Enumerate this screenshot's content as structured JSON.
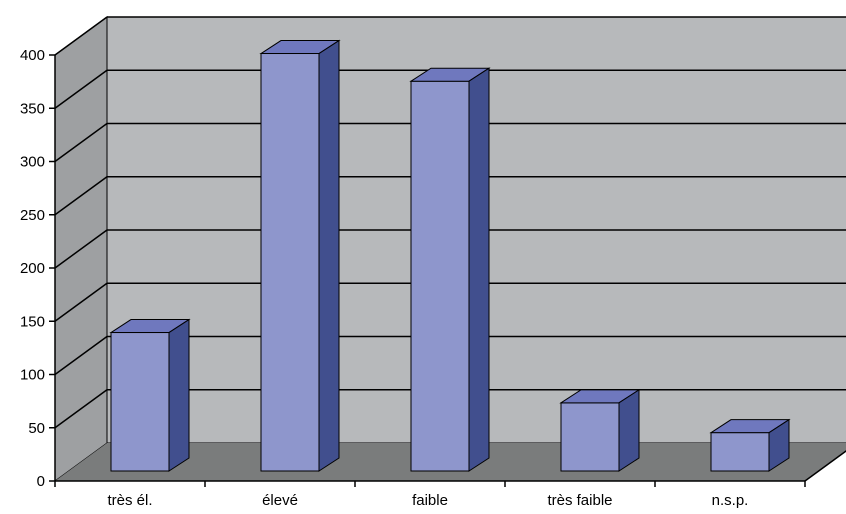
{
  "chart_data": {
    "type": "bar",
    "style": "3d-column",
    "categories": [
      "très él.",
      "élevé",
      "faible",
      "très faible",
      "n.s.p."
    ],
    "values": [
      130,
      392,
      366,
      64,
      36
    ],
    "ylim": [
      0,
      400
    ],
    "yticks": [
      "0",
      "50",
      "100",
      "150",
      "200",
      "250",
      "300",
      "350",
      "400"
    ],
    "grid": true,
    "legend": "none",
    "colors": {
      "bar_front": "#8e96cc",
      "bar_top": "#6f78be",
      "bar_side": "#414f8e",
      "back_wall": "#b7b9bb",
      "side_wall": "#9ea0a2",
      "floor": "#7a7c7c",
      "grid": "#000000"
    }
  }
}
